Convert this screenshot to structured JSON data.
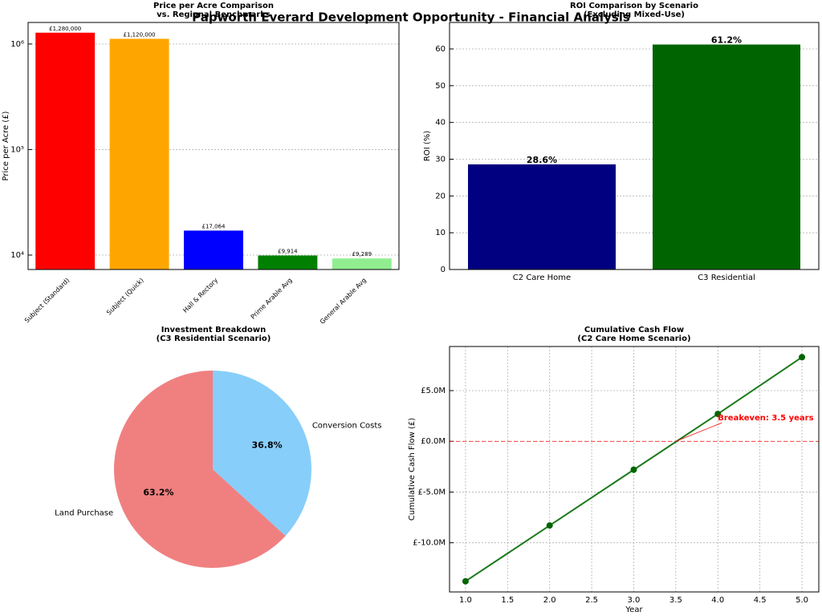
{
  "title": "Papworth Everard Development Opportunity - Financial Analysis",
  "chart_data": [
    {
      "type": "bar",
      "title": [
        "Price per Acre Comparison",
        "vs. Regional Benchmarks"
      ],
      "y_label": "Price per Acre (£)",
      "categories": [
        "Subject (Standard)",
        "Subject (Quick)",
        "Hall & Rectory",
        "Prime Arable Avg",
        "General Arable Avg"
      ],
      "values": [
        1280000,
        1120000,
        17064,
        9914,
        9289
      ],
      "value_labels": [
        "£1,280,000",
        "£1,120,000",
        "£17,064",
        "£9,914",
        "£9,289"
      ],
      "colors": [
        "#ff0000",
        "#ffa500",
        "#0000ff",
        "#008000",
        "#90ee90"
      ],
      "log_scale": true,
      "ylim": [
        7300,
        1600000
      ],
      "yticks": [
        {
          "value": 10000,
          "label": "10⁴"
        },
        {
          "value": 100000,
          "label": "10⁵"
        },
        {
          "value": 1000000,
          "label": "10⁶"
        }
      ],
      "grid": true
    },
    {
      "type": "bar",
      "title": [
        "ROI Comparison by Scenario",
        "(Excluding Mixed-Use)"
      ],
      "y_label": "ROI (%)",
      "categories": [
        "C2 Care Home",
        "C3 Residential"
      ],
      "values": [
        28.6,
        61.2
      ],
      "value_labels": [
        "28.6%",
        "61.2%"
      ],
      "colors": [
        "#000080",
        "#006400"
      ],
      "ylim": [
        0,
        67.2
      ],
      "yticks": [
        0,
        10,
        20,
        30,
        40,
        50,
        60
      ],
      "grid": true
    },
    {
      "type": "pie",
      "title": [
        "Investment Breakdown",
        "(C3 Residential Scenario)"
      ],
      "categories": [
        "Land Purchase",
        "Conversion Costs"
      ],
      "values": [
        63.2,
        36.8
      ],
      "value_labels": [
        "63.2%",
        "36.8%"
      ],
      "colors": [
        "#f08080",
        "#87cefa"
      ]
    },
    {
      "type": "line",
      "title": [
        "Cumulative Cash Flow",
        "(C2 Care Home Scenario)"
      ],
      "x_label": "Year",
      "y_label": "Cumulative Cash Flow (£)",
      "x": [
        1,
        2,
        3,
        4,
        5
      ],
      "series": [
        {
          "color": "#1a7a1a",
          "values": [
            -13.8,
            -8.3,
            -2.8,
            2.7,
            8.3
          ]
        }
      ],
      "xlim": [
        0.81,
        5.2
      ],
      "xticks": [
        {
          "value": 1,
          "label": "1.0"
        },
        1.5,
        {
          "value": 2,
          "label": "2.0"
        },
        2.5,
        {
          "value": 3,
          "label": "3.0"
        },
        3.5,
        {
          "value": 4,
          "label": "4.0"
        },
        4.5,
        {
          "value": 5,
          "label": "5.0"
        }
      ],
      "ylim": [
        -14.85,
        9.35
      ],
      "yticks": [
        {
          "value": -10,
          "label": "£-10.0M"
        },
        {
          "value": -5,
          "label": "£-5.0M"
        },
        {
          "value": 0,
          "label": "£0.0M"
        },
        {
          "value": 5,
          "label": "£5.0M"
        }
      ],
      "ref_line": {
        "y": 0,
        "color": "#ff0000"
      },
      "annotation": {
        "text": "Breakeven: 3.5 years",
        "xy": [
          3.5,
          0
        ],
        "text_xy": [
          4.0,
          2.3
        ],
        "color": "#ff0000"
      },
      "grid": true
    }
  ]
}
